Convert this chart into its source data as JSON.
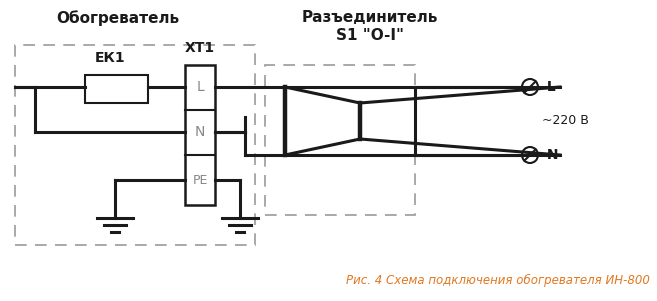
{
  "title_heater": "Обогреватель",
  "title_disconnector": "Разъединитель",
  "title_s1": "S1 \"O-I\"",
  "label_ek1": "ЕК1",
  "label_xt1": "XT1",
  "label_L": "L",
  "label_N": "N",
  "label_PE": "PE",
  "label_voltage": "~220 В",
  "caption": "Рис. 4 Схема подключения обогревателя ИН-800",
  "caption_color": "#e07820",
  "bg_color": "#ffffff",
  "line_color": "#1a1a1a",
  "dash_color": "#999999",
  "text_color": "#1a1a1a",
  "label_color": "#888888",
  "figsize": [
    6.57,
    3.01
  ],
  "dpi": 100
}
